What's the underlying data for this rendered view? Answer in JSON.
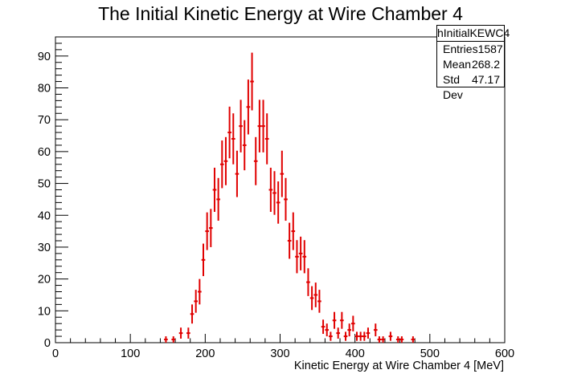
{
  "title": "The Initial Kinetic Energy at Wire Chamber 4",
  "stats": {
    "name": "hInitialKEWC4",
    "rows": [
      {
        "label": "Entries",
        "value": "1587"
      },
      {
        "label": "Mean",
        "value": "268.2"
      },
      {
        "label": "Std Dev",
        "value": "47.17"
      }
    ]
  },
  "chart_data": {
    "type": "scatter",
    "title": "The Initial Kinetic Energy at Wire Chamber 4",
    "xlabel": "Kinetic Energy at Wire Chamber 4 [MeV]",
    "ylabel": "",
    "xlim": [
      0,
      600
    ],
    "ylim": [
      0,
      96
    ],
    "x_ticks": [
      0,
      100,
      200,
      300,
      400,
      500,
      600
    ],
    "y_ticks": [
      0,
      10,
      20,
      30,
      40,
      50,
      60,
      70,
      80,
      90
    ],
    "grid": false,
    "marker_color": "#e00000",
    "error_bars": "sqrt(N)",
    "bin_width": 5,
    "series": [
      {
        "name": "hInitialKEWC4",
        "x": [
          147.5,
          157.5,
          167.5,
          177.5,
          182.5,
          187.5,
          192.5,
          197.5,
          202.5,
          207.5,
          212.5,
          217.5,
          222.5,
          227.5,
          232.5,
          237.5,
          242.5,
          247.5,
          252.5,
          257.5,
          262.5,
          267.5,
          272.5,
          277.5,
          282.5,
          287.5,
          292.5,
          297.5,
          302.5,
          307.5,
          312.5,
          317.5,
          322.5,
          327.5,
          332.5,
          337.5,
          342.5,
          347.5,
          352.5,
          357.5,
          362.5,
          367.5,
          372.5,
          377.5,
          382.5,
          387.5,
          392.5,
          397.5,
          402.5,
          407.5,
          412.5,
          417.5,
          427.5,
          432.5,
          437.5,
          447.5,
          457.5,
          462.5,
          477.5
        ],
        "y": [
          1,
          1,
          3,
          3,
          9,
          13,
          16,
          26,
          35,
          36,
          48,
          45,
          56,
          57,
          66,
          64,
          53,
          68,
          62,
          74,
          82,
          57,
          68,
          68,
          64,
          48,
          47,
          44,
          53,
          45,
          32,
          35,
          27,
          28,
          27,
          19,
          14,
          15,
          13,
          5,
          4,
          2,
          7,
          3,
          7,
          2,
          4,
          6,
          2,
          2,
          2,
          3,
          4,
          1,
          1,
          2,
          1,
          1,
          1
        ]
      }
    ]
  }
}
